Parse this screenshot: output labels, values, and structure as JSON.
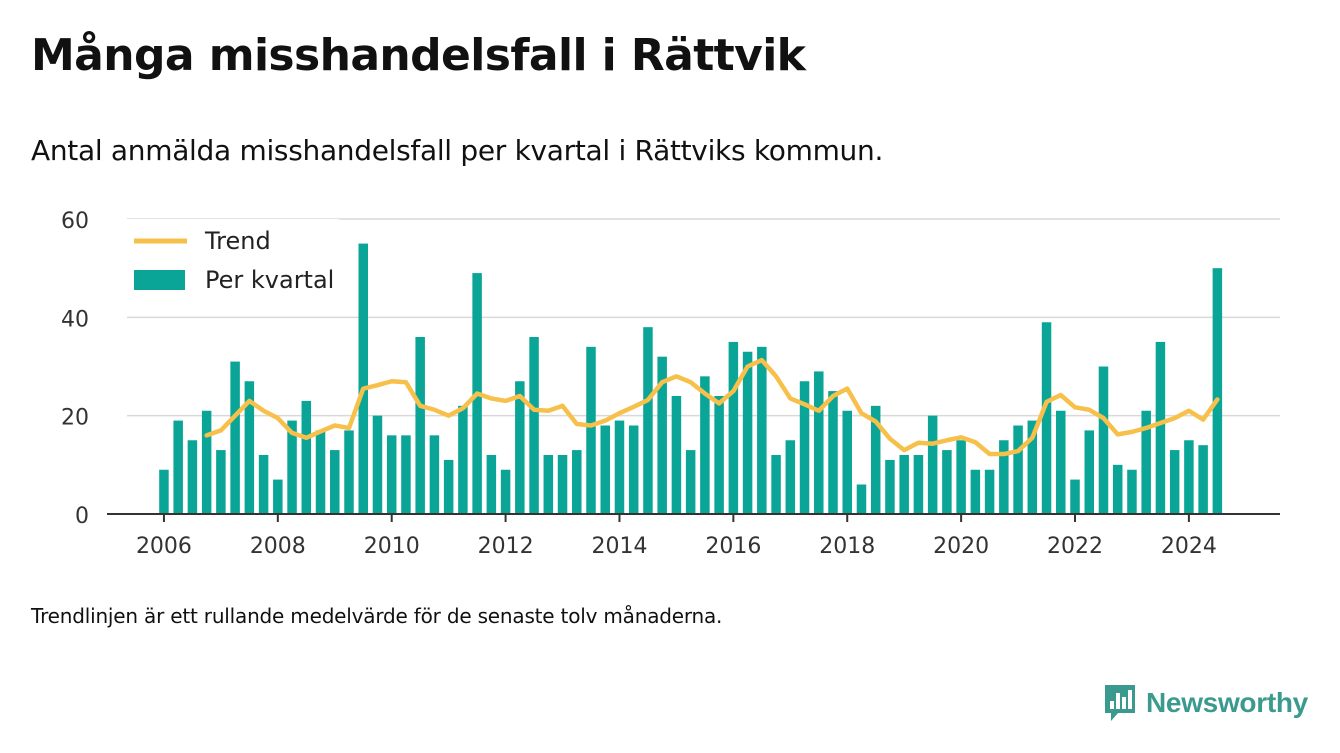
{
  "title": "Många misshandelsfall i Rättvik",
  "subtitle": "Antal anmälda misshandelsfall per kvartal i Rättviks kommun.",
  "note": "Trendlinjen är ett rullande medelvärde för de senaste tolv månaderna.",
  "brand": {
    "name": "Newsworthy",
    "icon": "bar-chart-speech-bubble-icon"
  },
  "colors": {
    "bar": "#0aa597",
    "trend": "#f7c04a",
    "grid": "#d9d9d9",
    "axis": "#333333",
    "brand": "#3a9a8e"
  },
  "chart_data": {
    "type": "bar",
    "x_axis": {
      "start_year": 2006,
      "ticks": [
        2006,
        2008,
        2010,
        2012,
        2014,
        2016,
        2018,
        2020,
        2022,
        2024
      ],
      "range": [
        2005,
        2025.6
      ]
    },
    "y_axis": {
      "ticks": [
        0,
        20,
        40,
        60
      ],
      "ylim": [
        0,
        60
      ]
    },
    "grid": "horizontal",
    "legend": {
      "placement": "top-left",
      "entries": [
        {
          "label": "Trend",
          "kind": "line"
        },
        {
          "label": "Per kvartal",
          "kind": "bar"
        }
      ]
    },
    "series": [
      {
        "name": "Per kvartal",
        "type": "bar",
        "x": [
          "2006 Q1",
          "2006 Q2",
          "2006 Q3",
          "2006 Q4",
          "2007 Q1",
          "2007 Q2",
          "2007 Q3",
          "2007 Q4",
          "2008 Q1",
          "2008 Q2",
          "2008 Q3",
          "2008 Q4",
          "2009 Q1",
          "2009 Q2",
          "2009 Q3",
          "2009 Q4",
          "2010 Q1",
          "2010 Q2",
          "2010 Q3",
          "2010 Q4",
          "2011 Q1",
          "2011 Q2",
          "2011 Q3",
          "2011 Q4",
          "2012 Q1",
          "2012 Q2",
          "2012 Q3",
          "2012 Q4",
          "2013 Q1",
          "2013 Q2",
          "2013 Q3",
          "2013 Q4",
          "2014 Q1",
          "2014 Q2",
          "2014 Q3",
          "2014 Q4",
          "2015 Q1",
          "2015 Q2",
          "2015 Q3",
          "2015 Q4",
          "2016 Q1",
          "2016 Q2",
          "2016 Q3",
          "2016 Q4",
          "2017 Q1",
          "2017 Q2",
          "2017 Q3",
          "2017 Q4",
          "2018 Q1",
          "2018 Q2",
          "2018 Q3",
          "2018 Q4",
          "2019 Q1",
          "2019 Q2",
          "2019 Q3",
          "2019 Q4",
          "2020 Q1",
          "2020 Q2",
          "2020 Q3",
          "2020 Q4",
          "2021 Q1",
          "2021 Q2",
          "2021 Q3",
          "2021 Q4",
          "2022 Q1",
          "2022 Q2",
          "2022 Q3",
          "2022 Q4",
          "2023 Q1",
          "2023 Q2",
          "2023 Q3",
          "2023 Q4",
          "2024 Q1",
          "2024 Q2",
          "2024 Q3"
        ],
        "values": [
          9,
          19,
          15,
          21,
          13,
          31,
          27,
          12,
          7,
          19,
          23,
          17,
          13,
          17,
          55,
          20,
          16,
          16,
          36,
          16,
          11,
          22,
          49,
          12,
          9,
          27,
          36,
          12,
          12,
          13,
          34,
          18,
          19,
          18,
          38,
          32,
          24,
          13,
          28,
          24,
          35,
          33,
          34,
          12,
          15,
          27,
          29,
          25,
          21,
          6,
          22,
          11,
          12,
          12,
          20,
          13,
          15,
          9,
          9,
          15,
          18,
          19,
          39,
          21,
          7,
          17,
          30,
          10,
          9,
          21,
          35,
          13,
          15,
          14,
          50
        ]
      },
      {
        "name": "Trend",
        "type": "line",
        "x": [
          "2006 Q4",
          "2007 Q1",
          "2007 Q2",
          "2007 Q3",
          "2007 Q4",
          "2008 Q1",
          "2008 Q2",
          "2008 Q3",
          "2008 Q4",
          "2009 Q1",
          "2009 Q2",
          "2009 Q3",
          "2009 Q4",
          "2010 Q1",
          "2010 Q2",
          "2010 Q3",
          "2010 Q4",
          "2011 Q1",
          "2011 Q2",
          "2011 Q3",
          "2011 Q4",
          "2012 Q1",
          "2012 Q2",
          "2012 Q3",
          "2012 Q4",
          "2013 Q1",
          "2013 Q2",
          "2013 Q3",
          "2013 Q4",
          "2014 Q1",
          "2014 Q2",
          "2014 Q3",
          "2014 Q4",
          "2015 Q1",
          "2015 Q2",
          "2015 Q3",
          "2015 Q4",
          "2016 Q1",
          "2016 Q2",
          "2016 Q3",
          "2016 Q4",
          "2017 Q1",
          "2017 Q2",
          "2017 Q3",
          "2017 Q4",
          "2018 Q1",
          "2018 Q2",
          "2018 Q3",
          "2018 Q4",
          "2019 Q1",
          "2019 Q2",
          "2019 Q3",
          "2019 Q4",
          "2020 Q1",
          "2020 Q2",
          "2020 Q3",
          "2020 Q4",
          "2021 Q1",
          "2021 Q2",
          "2021 Q3",
          "2021 Q4",
          "2022 Q1",
          "2022 Q2",
          "2022 Q3",
          "2022 Q4",
          "2023 Q1",
          "2023 Q2",
          "2023 Q3",
          "2023 Q4",
          "2024 Q1",
          "2024 Q2",
          "2024 Q3"
        ],
        "values": [
          16,
          17,
          20,
          23,
          21,
          19.5,
          16.5,
          15.5,
          16.8,
          18,
          17.5,
          25.5,
          26.2,
          27,
          26.8,
          22,
          21.2,
          20,
          21.5,
          24.5,
          23.5,
          23,
          24,
          21.2,
          21,
          22,
          18.3,
          18,
          19,
          20.5,
          21.8,
          23.2,
          26.8,
          28,
          26.8,
          24.5,
          22.5,
          25,
          30,
          31.3,
          28,
          23.5,
          22.3,
          21,
          24,
          25.5,
          20.5,
          18.8,
          15.3,
          13,
          14.5,
          14.3,
          15,
          15.6,
          14.6,
          12.2,
          12.2,
          12.8,
          15.5,
          22.8,
          24.2,
          21.7,
          21.2,
          19.5,
          16.2,
          16.7,
          17.5,
          18.5,
          19.5,
          21,
          19.2,
          23.3
        ]
      }
    ]
  }
}
